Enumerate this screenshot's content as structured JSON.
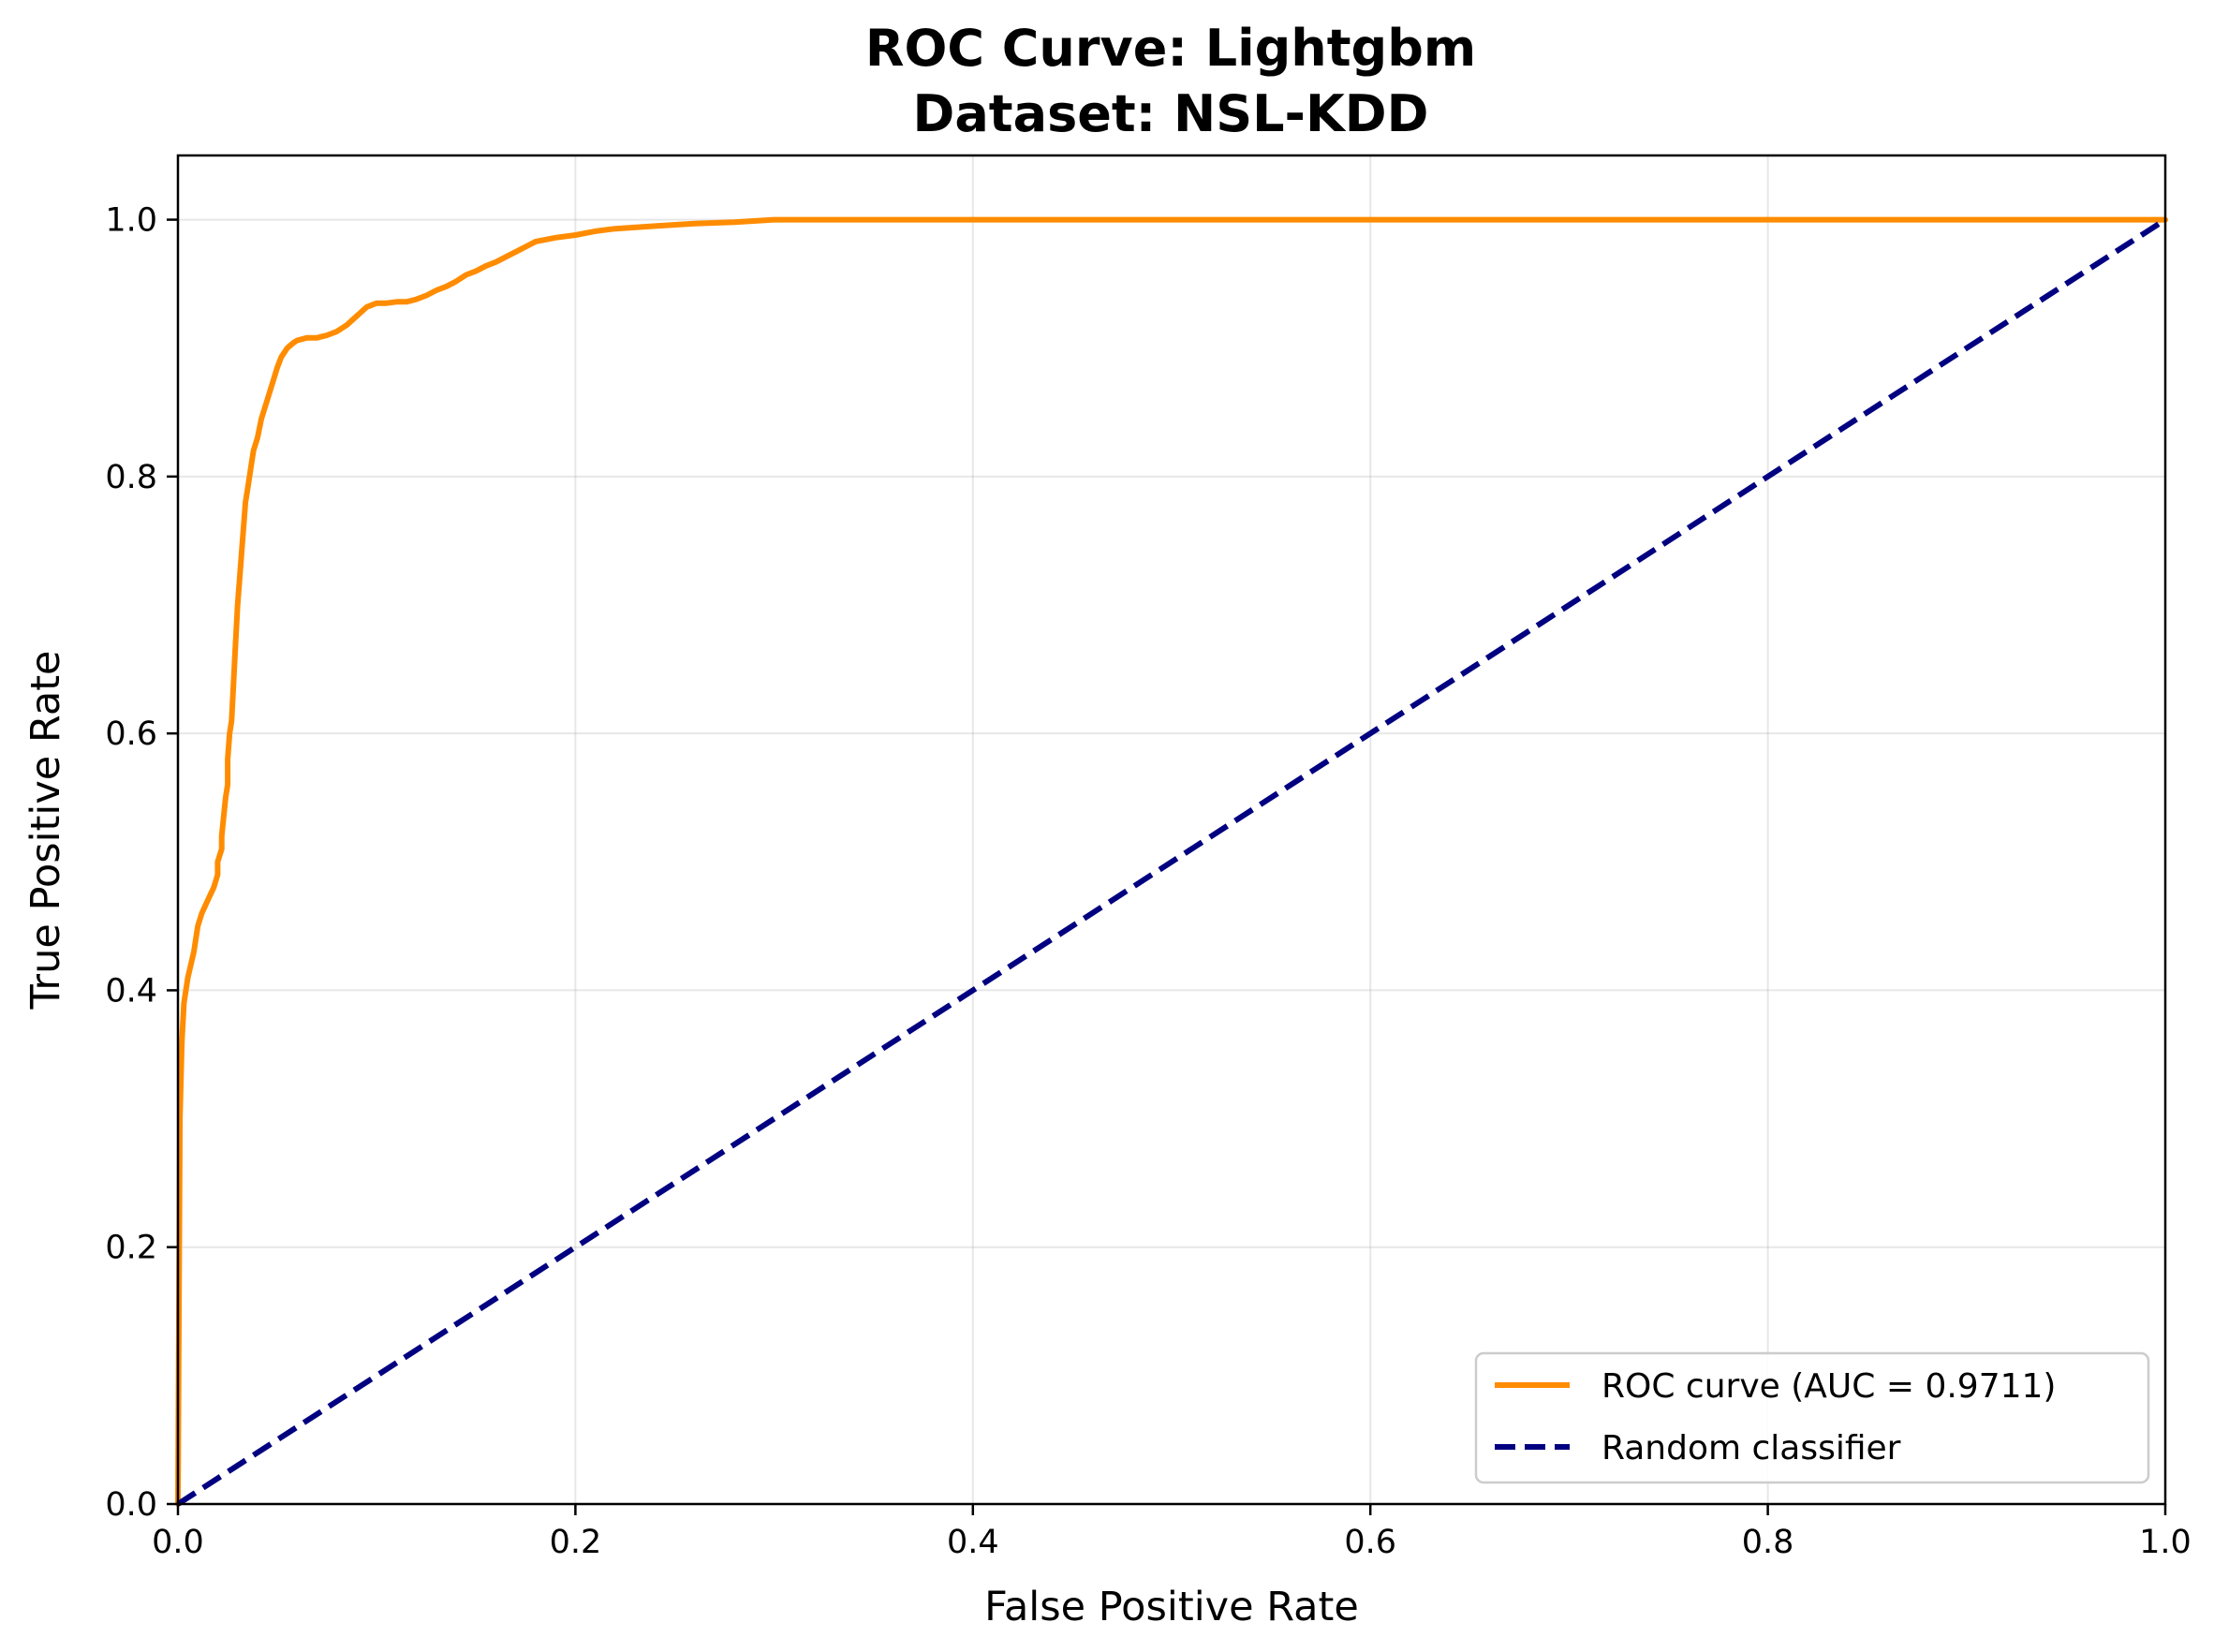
{
  "chart_data": {
    "type": "line",
    "title": "ROC Curve: Lightgbm",
    "subtitle": "Dataset: NSL-KDD",
    "xlabel": "False Positive Rate",
    "ylabel": "True Positive Rate",
    "xlim": [
      0.0,
      1.0
    ],
    "ylim": [
      0.0,
      1.05
    ],
    "xticks": [
      "0.0",
      "0.2",
      "0.4",
      "0.6",
      "0.8",
      "1.0"
    ],
    "yticks": [
      "0.0",
      "0.2",
      "0.4",
      "0.6",
      "0.8",
      "1.0"
    ],
    "grid": true,
    "legend_position": "lower-right",
    "series": [
      {
        "name": "ROC curve (AUC = 0.9711)",
        "color": "#ff8c00",
        "style": "solid",
        "x": [
          0.0,
          0.001,
          0.002,
          0.003,
          0.005,
          0.008,
          0.01,
          0.012,
          0.015,
          0.018,
          0.02,
          0.02,
          0.022,
          0.022,
          0.024,
          0.025,
          0.025,
          0.026,
          0.027,
          0.028,
          0.029,
          0.03,
          0.031,
          0.032,
          0.033,
          0.034,
          0.035,
          0.036,
          0.037,
          0.038,
          0.04,
          0.042,
          0.045,
          0.048,
          0.05,
          0.052,
          0.055,
          0.058,
          0.06,
          0.065,
          0.07,
          0.075,
          0.08,
          0.085,
          0.09,
          0.095,
          0.1,
          0.105,
          0.11,
          0.115,
          0.12,
          0.125,
          0.13,
          0.135,
          0.14,
          0.145,
          0.15,
          0.155,
          0.16,
          0.165,
          0.17,
          0.175,
          0.18,
          0.19,
          0.2,
          0.21,
          0.22,
          0.24,
          0.26,
          0.28,
          0.3,
          0.33,
          0.4,
          0.5,
          0.6,
          0.7,
          0.8,
          0.9,
          1.0
        ],
        "y": [
          0.0,
          0.3,
          0.36,
          0.39,
          0.41,
          0.43,
          0.45,
          0.46,
          0.47,
          0.48,
          0.49,
          0.5,
          0.51,
          0.52,
          0.55,
          0.56,
          0.58,
          0.6,
          0.61,
          0.64,
          0.67,
          0.7,
          0.72,
          0.74,
          0.76,
          0.78,
          0.79,
          0.8,
          0.81,
          0.82,
          0.83,
          0.845,
          0.86,
          0.875,
          0.885,
          0.893,
          0.9,
          0.904,
          0.906,
          0.908,
          0.908,
          0.91,
          0.913,
          0.918,
          0.925,
          0.932,
          0.935,
          0.935,
          0.936,
          0.936,
          0.938,
          0.941,
          0.945,
          0.948,
          0.952,
          0.957,
          0.96,
          0.964,
          0.967,
          0.971,
          0.975,
          0.979,
          0.983,
          0.986,
          0.988,
          0.991,
          0.993,
          0.995,
          0.997,
          0.998,
          1.0,
          1.0,
          1.0,
          1.0,
          1.0,
          1.0,
          1.0,
          1.0,
          1.0
        ]
      },
      {
        "name": "Random classifier",
        "color": "#000080",
        "style": "dashed",
        "x": [
          0.0,
          1.0
        ],
        "y": [
          0.0,
          1.0
        ]
      }
    ]
  }
}
